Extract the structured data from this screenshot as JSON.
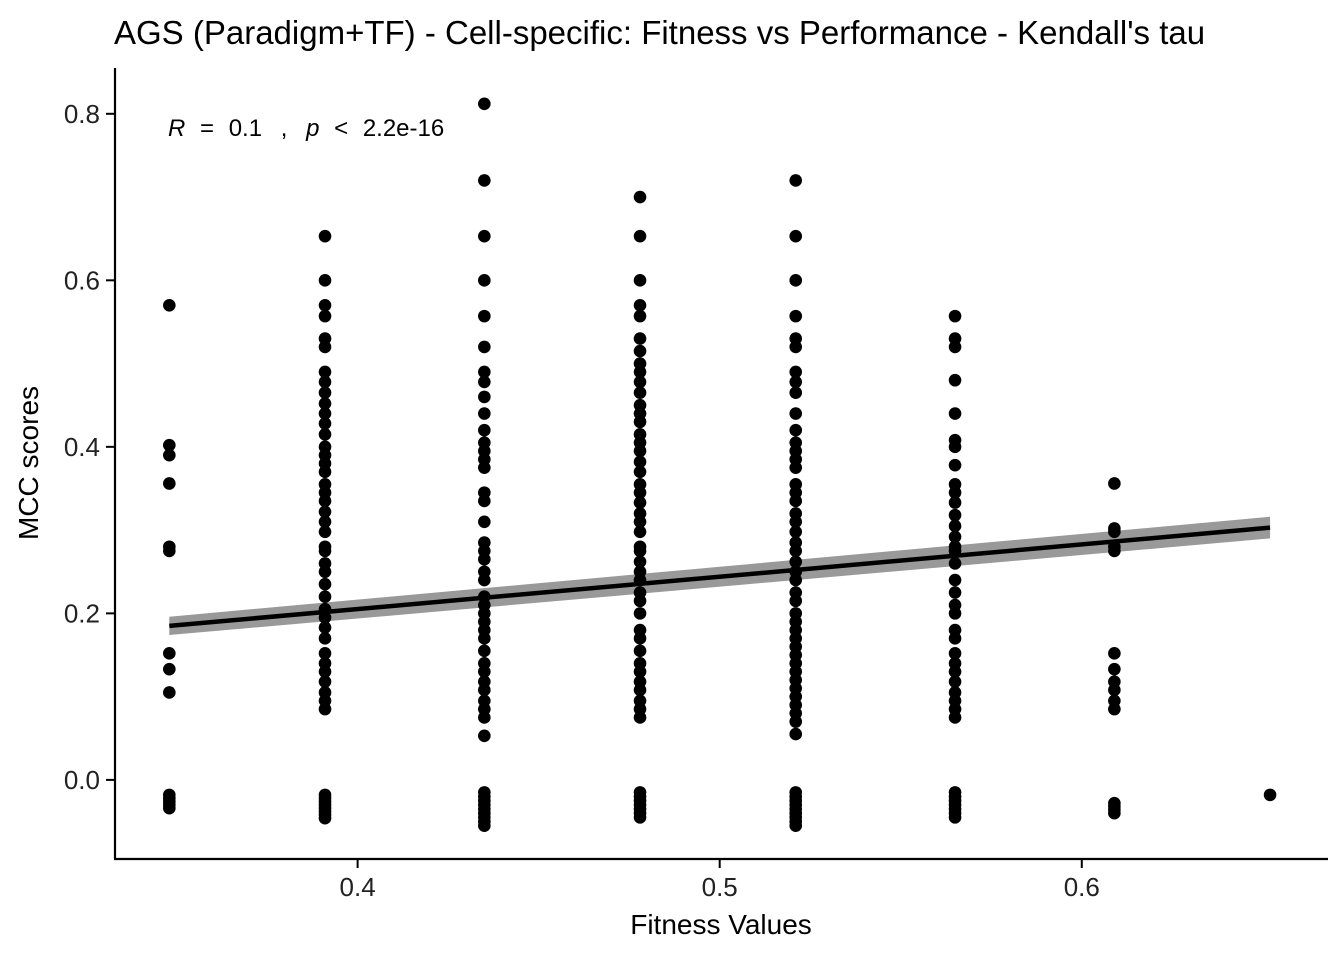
{
  "chart_data": {
    "type": "scatter",
    "title": "AGS (Paradigm+TF) - Cell-specific: Fitness vs Performance - Kendall's tau",
    "xlabel": "Fitness Values",
    "ylabel": "MCC scores",
    "xlim": [
      0.333,
      0.668
    ],
    "ylim": [
      -0.095,
      0.855
    ],
    "x_ticks": [
      {
        "value": 0.4,
        "label": "0.4"
      },
      {
        "value": 0.5,
        "label": "0.5"
      },
      {
        "value": 0.6,
        "label": "0.6"
      }
    ],
    "y_ticks": [
      {
        "value": 0.0,
        "label": "0.0"
      },
      {
        "value": 0.2,
        "label": "0.2"
      },
      {
        "value": 0.4,
        "label": "0.4"
      },
      {
        "value": 0.6,
        "label": "0.6"
      },
      {
        "value": 0.8,
        "label": "0.8"
      }
    ],
    "annotation": {
      "R_symbol": "R",
      "eq": "=",
      "R_value": "0.1",
      "comma": ",",
      "p_symbol": "p",
      "lt": "<",
      "p_value": "2.2e-16"
    },
    "grid": false,
    "point_color": "#000000",
    "fit_line": {
      "x": [
        0.348,
        0.652
      ],
      "y": [
        0.185,
        0.303
      ],
      "color": "#000000",
      "band_color": "#999999",
      "band_halfwidth": [
        0.011,
        0.013
      ]
    },
    "points": [
      {
        "x": 0.348,
        "y": [
          0.57,
          0.402,
          0.39,
          0.356,
          0.28,
          0.275,
          0.152,
          0.133,
          0.105,
          -0.018,
          -0.022,
          -0.026,
          -0.03,
          -0.034
        ]
      },
      {
        "x": 0.391,
        "y": [
          0.653,
          0.6,
          0.57,
          0.557,
          0.53,
          0.52,
          0.49,
          0.478,
          0.465,
          0.452,
          0.44,
          0.428,
          0.415,
          0.4,
          0.39,
          0.38,
          0.37,
          0.355,
          0.345,
          0.335,
          0.322,
          0.31,
          0.298,
          0.28,
          0.275,
          0.26,
          0.25,
          0.235,
          0.22,
          0.205,
          0.195,
          0.183,
          0.17,
          0.152,
          0.14,
          0.13,
          0.118,
          0.105,
          0.095,
          0.085,
          -0.018,
          -0.022,
          -0.026,
          -0.03,
          -0.034,
          -0.038,
          -0.042,
          -0.046
        ]
      },
      {
        "x": 0.435,
        "y": [
          0.812,
          0.72,
          0.653,
          0.6,
          0.557,
          0.52,
          0.49,
          0.478,
          0.46,
          0.44,
          0.42,
          0.405,
          0.395,
          0.385,
          0.375,
          0.345,
          0.335,
          0.31,
          0.285,
          0.275,
          0.265,
          0.25,
          0.24,
          0.22,
          0.21,
          0.2,
          0.19,
          0.18,
          0.17,
          0.155,
          0.14,
          0.13,
          0.118,
          0.108,
          0.095,
          0.085,
          0.075,
          0.053,
          -0.015,
          -0.02,
          -0.025,
          -0.03,
          -0.035,
          -0.04,
          -0.045,
          -0.05,
          -0.055
        ]
      },
      {
        "x": 0.478,
        "y": [
          0.7,
          0.653,
          0.6,
          0.57,
          0.557,
          0.53,
          0.515,
          0.5,
          0.49,
          0.478,
          0.465,
          0.45,
          0.44,
          0.43,
          0.415,
          0.405,
          0.395,
          0.382,
          0.37,
          0.355,
          0.345,
          0.333,
          0.32,
          0.31,
          0.298,
          0.28,
          0.275,
          0.262,
          0.25,
          0.24,
          0.225,
          0.215,
          0.2,
          0.18,
          0.17,
          0.155,
          0.14,
          0.13,
          0.118,
          0.108,
          0.095,
          0.085,
          0.075,
          -0.015,
          -0.02,
          -0.025,
          -0.03,
          -0.035,
          -0.04,
          -0.045
        ]
      },
      {
        "x": 0.521,
        "y": [
          0.72,
          0.653,
          0.6,
          0.557,
          0.53,
          0.52,
          0.49,
          0.478,
          0.465,
          0.44,
          0.42,
          0.405,
          0.395,
          0.385,
          0.375,
          0.355,
          0.345,
          0.335,
          0.32,
          0.31,
          0.298,
          0.285,
          0.275,
          0.262,
          0.25,
          0.24,
          0.225,
          0.215,
          0.2,
          0.19,
          0.18,
          0.17,
          0.16,
          0.15,
          0.14,
          0.13,
          0.12,
          0.11,
          0.1,
          0.09,
          0.08,
          0.07,
          0.055,
          -0.015,
          -0.02,
          -0.025,
          -0.03,
          -0.035,
          -0.04,
          -0.045,
          -0.05,
          -0.055
        ]
      },
      {
        "x": 0.565,
        "y": [
          0.557,
          0.53,
          0.52,
          0.48,
          0.44,
          0.408,
          0.4,
          0.378,
          0.355,
          0.345,
          0.333,
          0.318,
          0.305,
          0.292,
          0.28,
          0.275,
          0.26,
          0.24,
          0.225,
          0.21,
          0.2,
          0.18,
          0.17,
          0.152,
          0.14,
          0.13,
          0.118,
          0.105,
          0.095,
          0.085,
          0.075,
          -0.015,
          -0.02,
          -0.025,
          -0.03,
          -0.035,
          -0.04,
          -0.045
        ]
      },
      {
        "x": 0.609,
        "y": [
          0.356,
          0.302,
          0.298,
          0.28,
          0.275,
          0.152,
          0.133,
          0.118,
          0.108,
          0.095,
          0.085,
          -0.028,
          -0.032,
          -0.036,
          -0.04
        ]
      },
      {
        "x": 0.652,
        "y": [
          -0.018
        ]
      }
    ]
  }
}
